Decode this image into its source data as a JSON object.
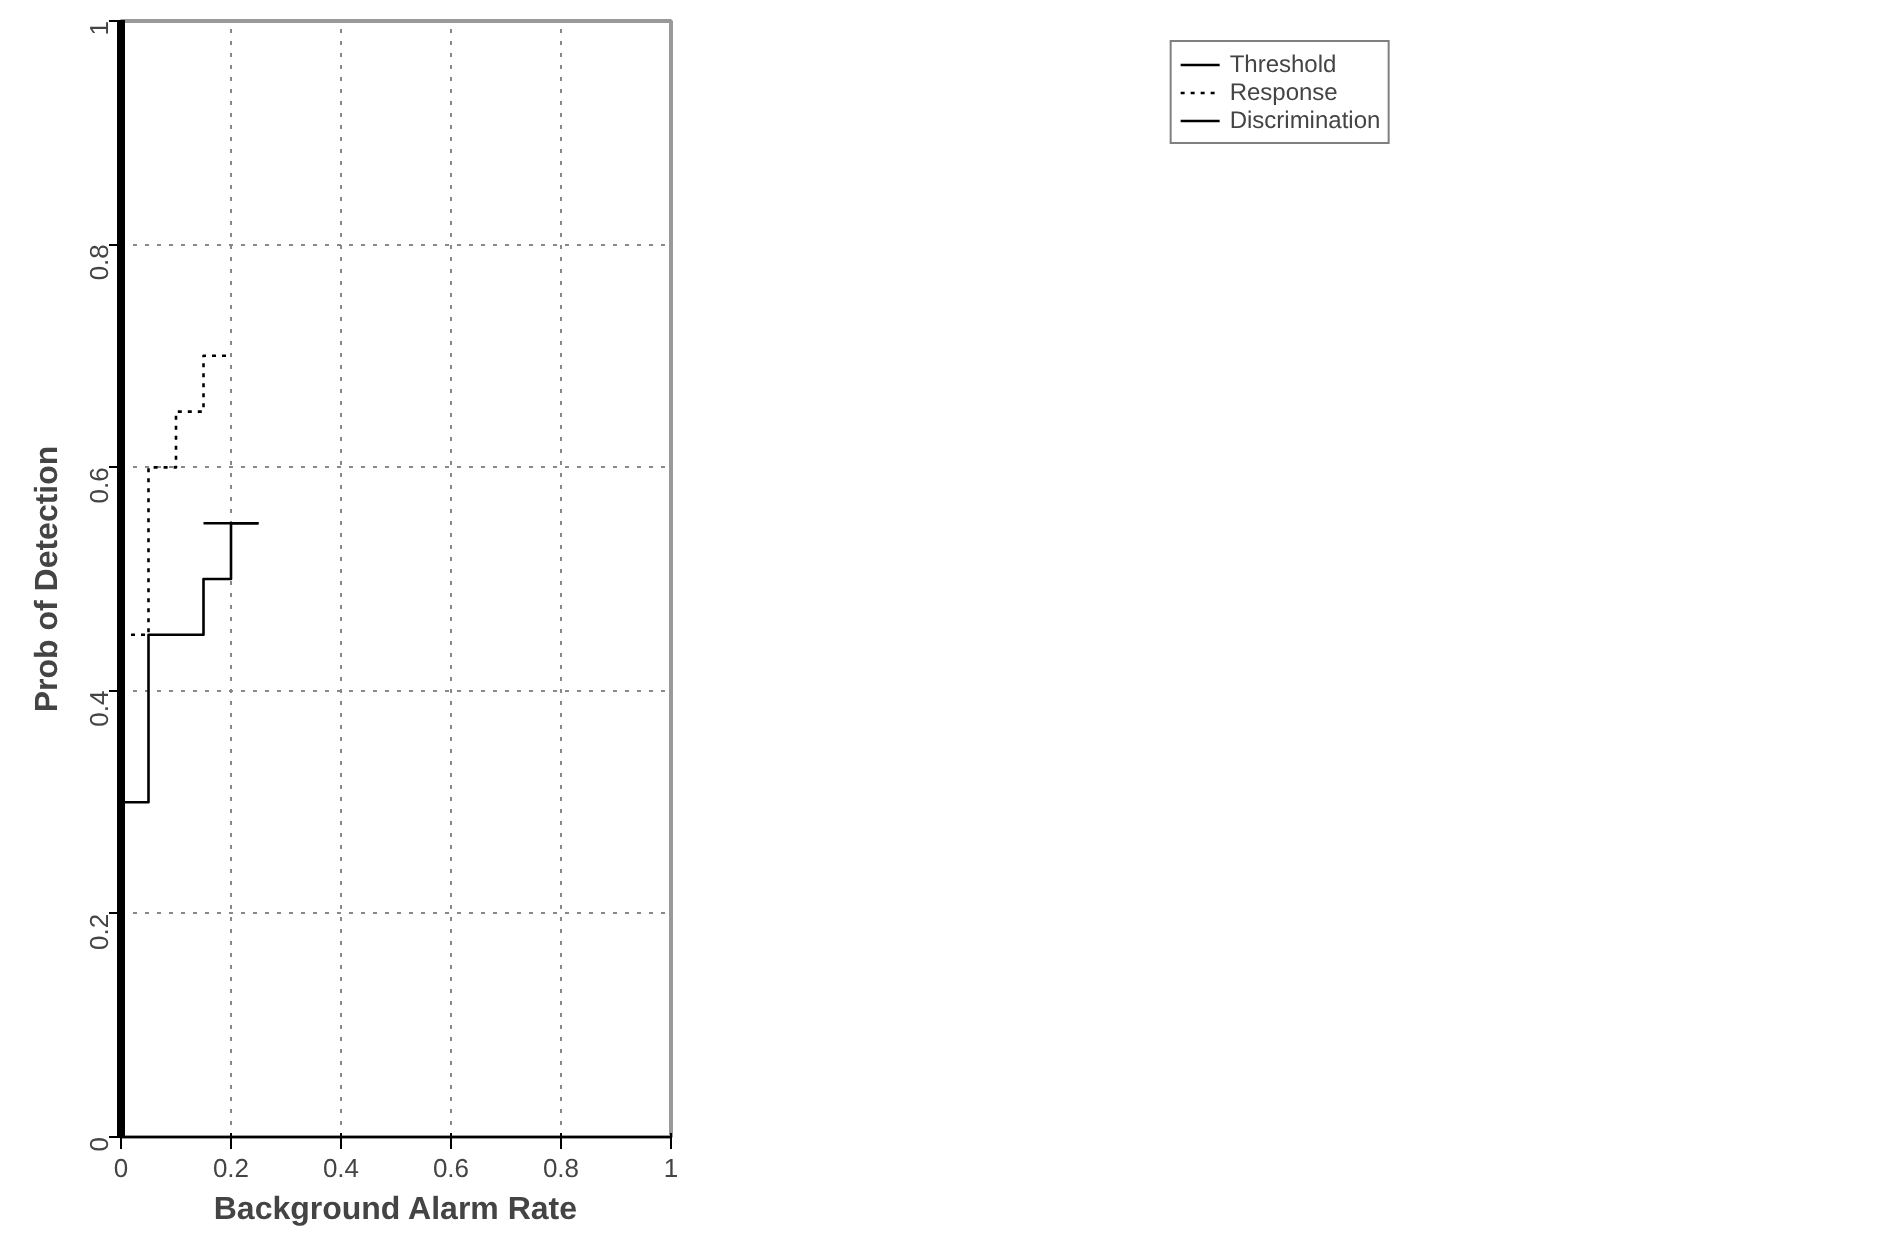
{
  "chart_data": {
    "type": "step",
    "xlabel": "Background Alarm Rate",
    "ylabel": "Prob of Detection",
    "xlim": [
      0,
      1
    ],
    "ylim": [
      0,
      1
    ],
    "xticks": [
      0,
      0.2,
      0.4,
      0.6,
      0.8,
      1
    ],
    "yticks": [
      0,
      0.2,
      0.4,
      0.6,
      0.8,
      1
    ],
    "grid": true,
    "legend": "top right",
    "marker": "none",
    "series": [
      {
        "name": "Threshold",
        "color": "#000000",
        "line_style": "solid",
        "x": [
          0,
          0.05,
          0.15,
          0.2,
          0.25
        ],
        "values": [
          0.3,
          0.45,
          0.5,
          0.55,
          0.55
        ]
      },
      {
        "name": "Response",
        "color": "#000000",
        "line_style": "dotted",
        "x": [
          0,
          0.05,
          0.1,
          0.15,
          0.2
        ],
        "values": [
          0.45,
          0.6,
          0.65,
          0.7,
          0.7
        ]
      },
      {
        "name": "Discrimination",
        "color": "#000000",
        "line_style": "solid",
        "x": [
          0.15,
          0.25
        ],
        "values": [
          0.55,
          0.55
        ]
      }
    ]
  }
}
